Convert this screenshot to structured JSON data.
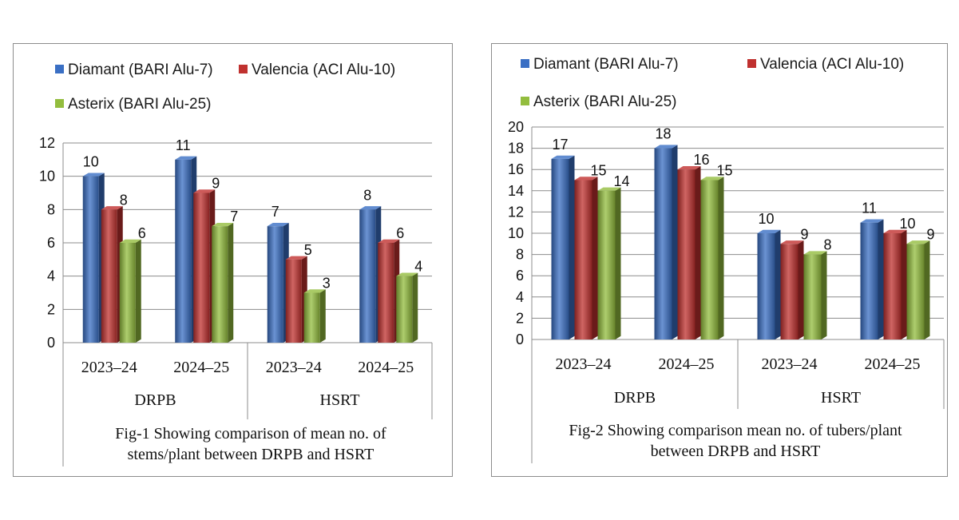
{
  "colors": {
    "diamant": "#3a6fc4",
    "valencia": "#c0312f",
    "asterix": "#93bd3e"
  },
  "chart_data": [
    {
      "type": "bar",
      "title": "",
      "caption_line1": "Fig-1   Showing comparison of  mean no. of",
      "caption_line2": "stems/plant  between DRPB and HSRT",
      "legend": [
        "Diamant (BARI Alu-7)",
        "Valencia (ACI Alu-10)",
        "Asterix (BARI Alu-25)"
      ],
      "groups": [
        "DRPB",
        "HSRT"
      ],
      "categories": [
        "2023–24",
        "2024–25",
        "2023–24",
        "2024–25"
      ],
      "ylim": [
        0,
        12
      ],
      "yticks": [
        "0",
        "2",
        "4",
        "6",
        "8",
        "10",
        "12"
      ],
      "series": [
        {
          "name": "Diamant (BARI Alu-7)",
          "values": [
            10,
            11,
            7,
            8
          ]
        },
        {
          "name": "Valencia (ACI Alu-10)",
          "values": [
            8,
            9,
            5,
            6
          ]
        },
        {
          "name": "Asterix (BARI Alu-25)",
          "values": [
            6,
            7,
            3,
            4
          ]
        }
      ]
    },
    {
      "type": "bar",
      "title": "",
      "caption_line1": "Fig-2  Showing comparison  mean no. of tubers/plant",
      "caption_line2": "between DRPB and HSRT",
      "legend": [
        "Diamant (BARI Alu-7)",
        "Valencia (ACI Alu-10)",
        "Asterix (BARI Alu-25)"
      ],
      "groups": [
        "DRPB",
        "HSRT"
      ],
      "categories": [
        "2023–24",
        "2024–25",
        "2023–24",
        "2024–25"
      ],
      "ylim": [
        0,
        20
      ],
      "yticks": [
        "0",
        "2",
        "4",
        "6",
        "8",
        "10",
        "12",
        "14",
        "16",
        "18",
        "20"
      ],
      "series": [
        {
          "name": "Diamant (BARI Alu-7)",
          "values": [
            17,
            18,
            10,
            11
          ]
        },
        {
          "name": "Valencia (ACI Alu-10)",
          "values": [
            15,
            16,
            9,
            10
          ]
        },
        {
          "name": "Asterix (BARI Alu-25)",
          "values": [
            14,
            15,
            8,
            9
          ]
        }
      ]
    }
  ]
}
